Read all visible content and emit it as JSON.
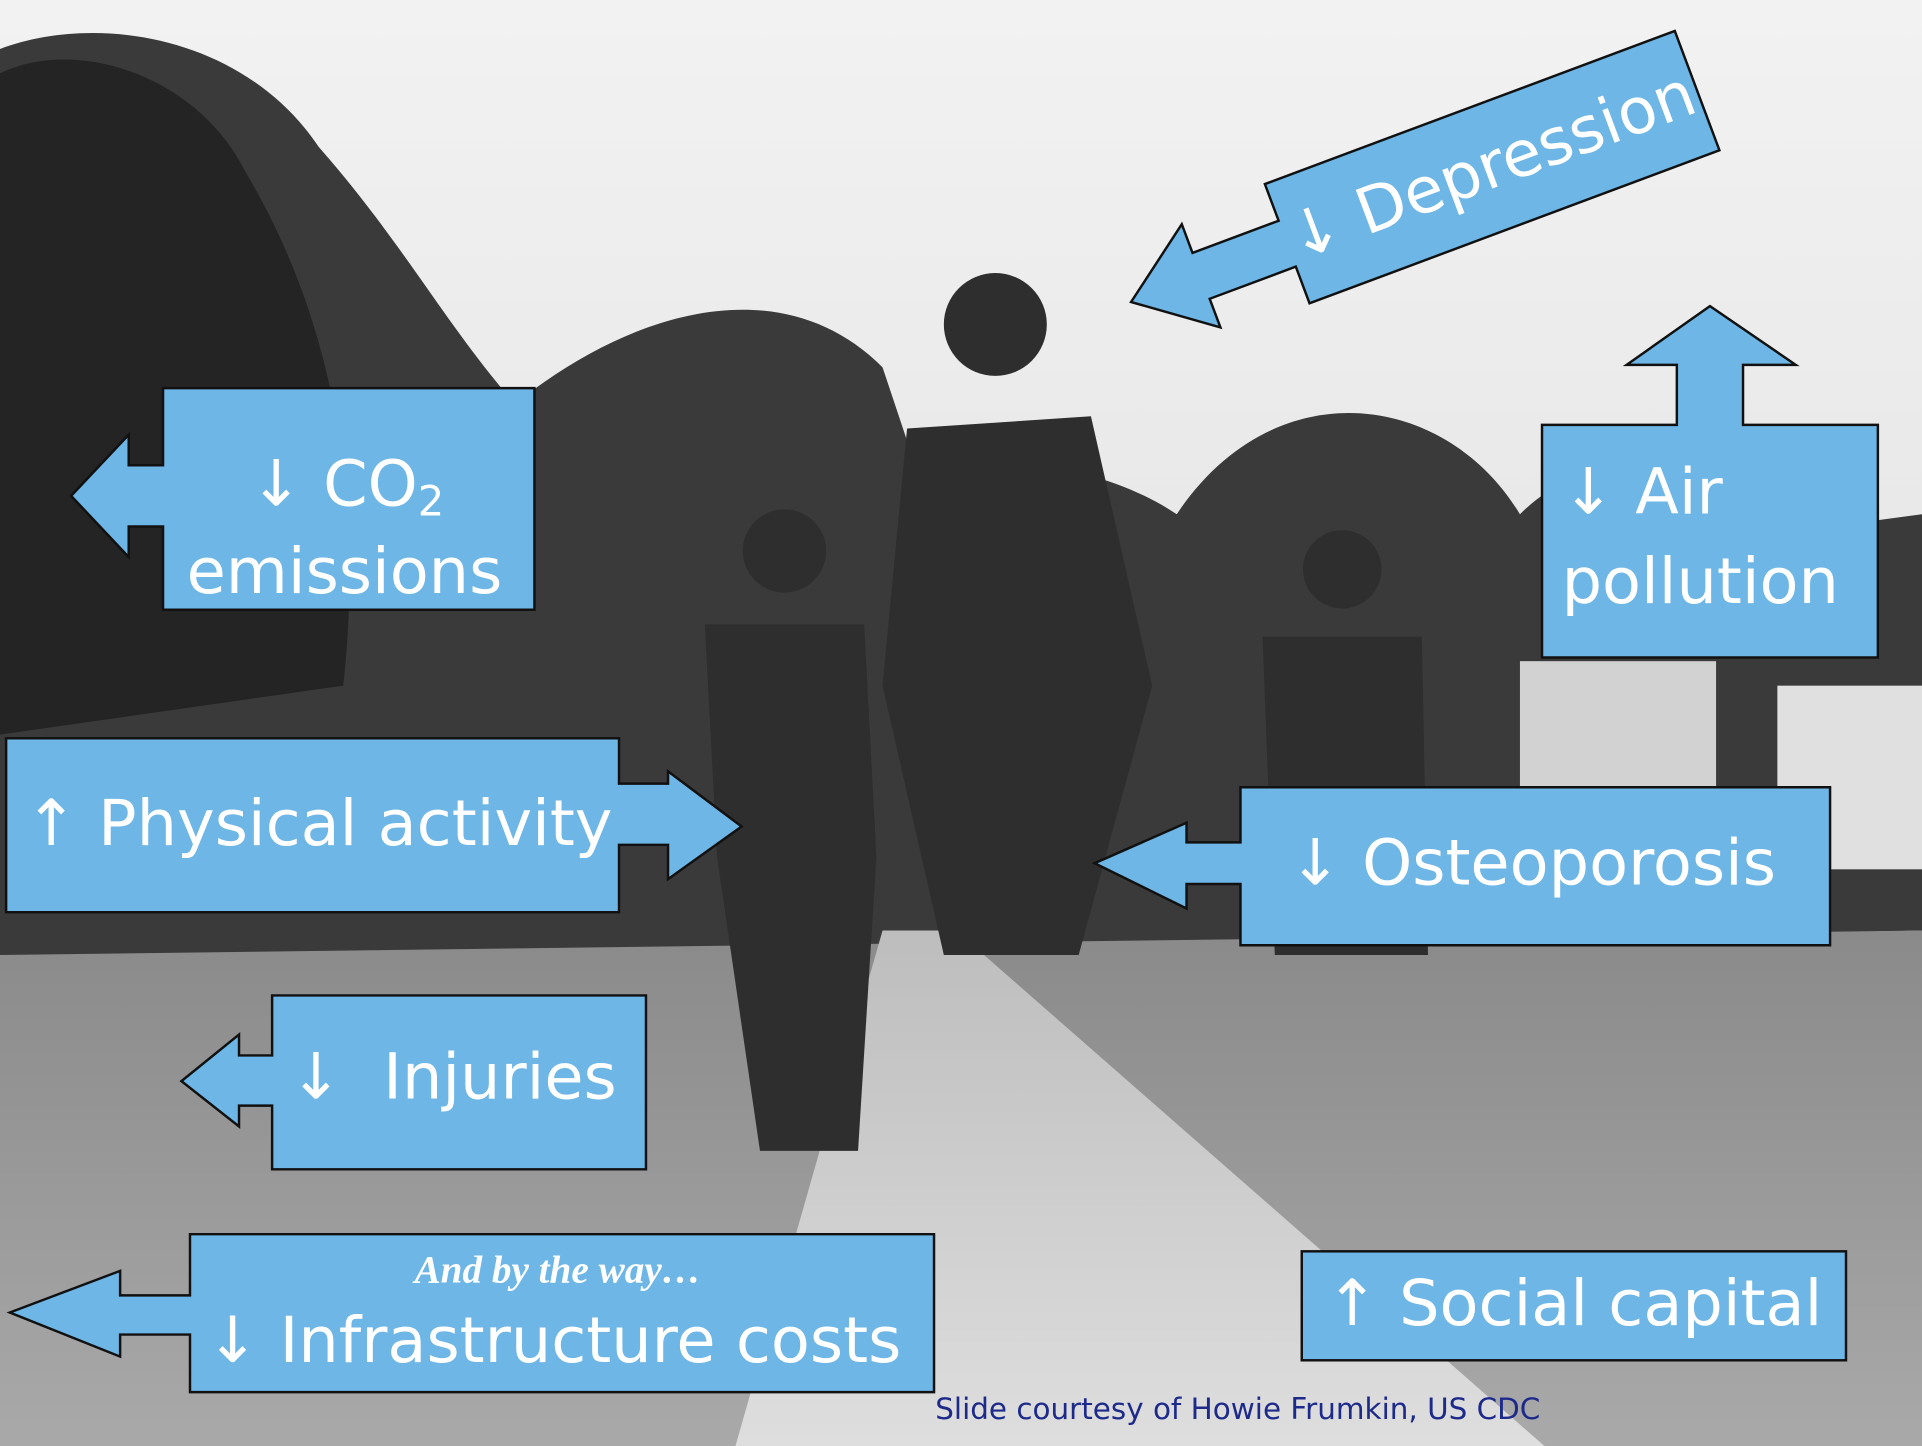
{
  "slide": {
    "labels": {
      "co2_emissions": {
        "line1": "↓ CO",
        "subscript": "2",
        "line2": "emissions"
      },
      "depression": "↓ Depression",
      "air_pollution": {
        "line1": "↓ Air",
        "line2": "pollution"
      },
      "physical_activity": "↑ Physical activity",
      "osteoporosis": "↓ Osteoporosis",
      "injuries": "↓  Injuries",
      "infrastructure_costs": {
        "note": "And by the way…",
        "text": "↓ Infrastructure costs"
      },
      "social_capital": "↑ Social capital"
    },
    "credit": "Slide courtesy of Howie Frumkin, US CDC"
  }
}
